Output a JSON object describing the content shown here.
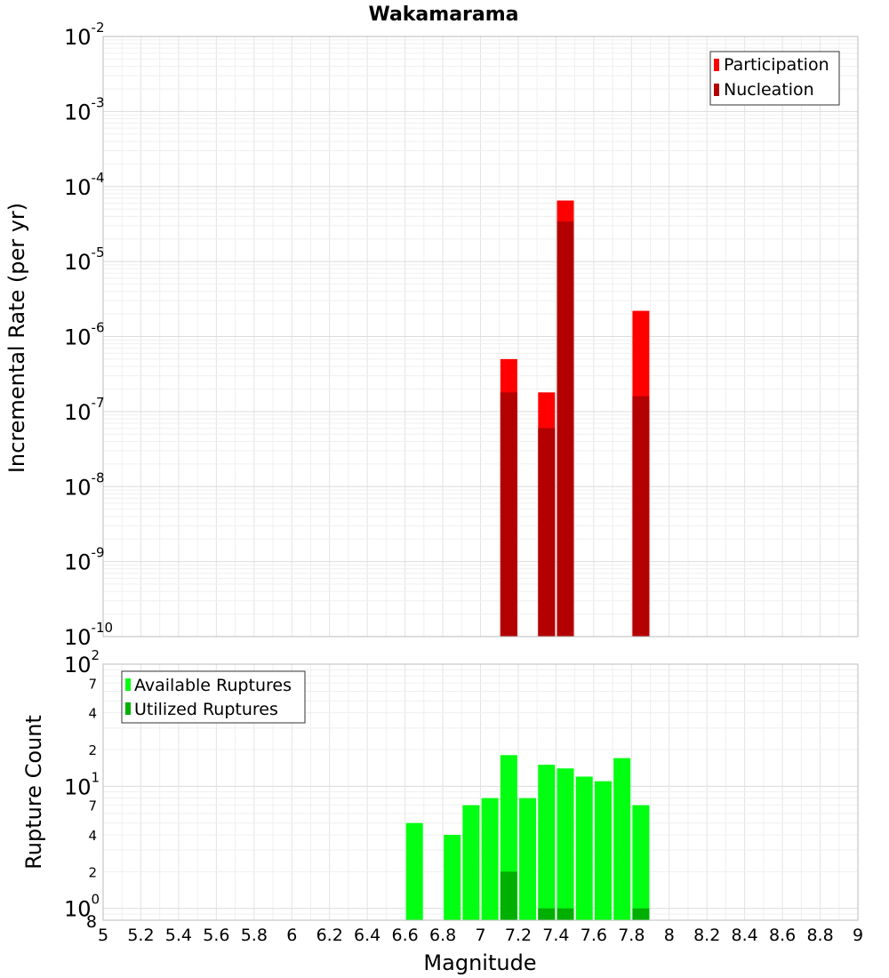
{
  "chart_data": [
    {
      "type": "bar",
      "title": "Wakamarama",
      "xlabel": "",
      "ylabel": "Incremental Rate (per yr)",
      "yscale": "log",
      "ylim": [
        1e-10,
        0.01
      ],
      "xlim": [
        5,
        9
      ],
      "legend_position": "top-right",
      "y_tick_exponents": [
        "-10",
        "-9",
        "-8",
        "-7",
        "-6",
        "-5",
        "-4",
        "-3",
        "-2"
      ],
      "y_tick_base": "10",
      "series": [
        {
          "name": "Participation",
          "color": "#ff0000",
          "x": [
            7.15,
            7.35,
            7.45,
            7.85
          ],
          "values": [
            5e-07,
            1.8e-07,
            6.5e-05,
            2.2e-06
          ]
        },
        {
          "name": "Nucleation",
          "color": "#b30000",
          "x": [
            7.15,
            7.35,
            7.45,
            7.85
          ],
          "values": [
            1.8e-07,
            6e-08,
            3.4e-05,
            1.6e-07
          ]
        }
      ]
    },
    {
      "type": "bar",
      "title": "",
      "xlabel": "Magnitude",
      "ylabel": "Rupture Count",
      "yscale": "log",
      "ylim": [
        0.8,
        100
      ],
      "xlim": [
        5,
        9
      ],
      "legend_position": "top-left",
      "x_ticks": [
        "5",
        "5.2",
        "5.4",
        "5.6",
        "5.8",
        "6",
        "6.2",
        "6.4",
        "6.6",
        "6.8",
        "7",
        "7.2",
        "7.4",
        "7.6",
        "7.8",
        "8",
        "8.2",
        "8.4",
        "8.6",
        "8.8",
        "9"
      ],
      "y_tick_base": "10",
      "y_tick_exponents": [
        "0",
        "1",
        "2"
      ],
      "y_minor_ticks": [
        {
          "value": 2,
          "label": "2"
        },
        {
          "value": 4,
          "label": "4"
        },
        {
          "value": 7,
          "label": "7"
        },
        {
          "value": 20,
          "label": "2"
        },
        {
          "value": 40,
          "label": "4"
        },
        {
          "value": 70,
          "label": "7"
        }
      ],
      "y_bottom_label": "8",
      "series": [
        {
          "name": "Available Ruptures",
          "color": "#00ff10",
          "x": [
            6.65,
            6.85,
            6.95,
            7.05,
            7.15,
            7.25,
            7.35,
            7.45,
            7.55,
            7.65,
            7.75,
            7.85
          ],
          "values": [
            5,
            4,
            7,
            8,
            18,
            8,
            15,
            14,
            12,
            11,
            17,
            7
          ]
        },
        {
          "name": "Utilized Ruptures",
          "color": "#00b000",
          "x": [
            7.15,
            7.35,
            7.45,
            7.85
          ],
          "values": [
            2,
            1,
            1,
            1
          ]
        }
      ]
    }
  ]
}
